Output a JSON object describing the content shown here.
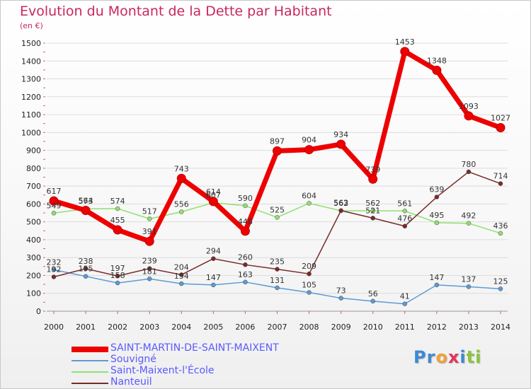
{
  "header": {
    "title": "Evolution du Montant de la Dette par Habitant",
    "unit": "(en €)"
  },
  "logo": {
    "text": "Proxiti",
    "letters": [
      "P",
      "r",
      "o",
      "x",
      "i",
      "t",
      "i"
    ],
    "colors": [
      "#3a8ad6",
      "#3a8ad6",
      "#f2a03b",
      "#e0365f",
      "#3a8ad6",
      "#8ac43f",
      "#8ac43f"
    ]
  },
  "chart_data": {
    "type": "line",
    "title": "Evolution du Montant de la Dette par Habitant",
    "ylabel": "(en €)",
    "ylim": [
      0,
      1500
    ],
    "yticks": [
      0,
      100,
      200,
      300,
      400,
      500,
      600,
      700,
      800,
      900,
      1000,
      1100,
      1200,
      1300,
      1400,
      1500
    ],
    "categories": [
      "2000",
      "2001",
      "2002",
      "2003",
      "2004",
      "2005",
      "2006",
      "2007",
      "2008",
      "2009",
      "2010",
      "2011",
      "2012",
      "2013",
      "2014"
    ],
    "grid": "horizontal",
    "legend_position": "bottom-left",
    "series": [
      {
        "name": "Souvigné",
        "color": "#5b9bd5",
        "values": [
          232,
          195,
          158,
          181,
          154,
          147,
          163,
          131,
          105,
          73,
          56,
          41,
          147,
          137,
          125
        ]
      },
      {
        "name": "Saint-Maixent-l'École",
        "color": "#90e070",
        "values": [
          549,
          573,
          574,
          517,
          556,
          607,
          590,
          525,
          604,
          562,
          562,
          561,
          495,
          492,
          436
        ]
      },
      {
        "name": "Nanteuil",
        "color": "#7a2a2a",
        "values": [
          192,
          238,
          197,
          239,
          204,
          294,
          260,
          235,
          209,
          563,
          521,
          476,
          639,
          780,
          714
        ]
      },
      {
        "name": "SAINT-MARTIN-DE-SAINT-MAIXENT",
        "color": "#ee0000",
        "values": [
          617,
          564,
          455,
          391,
          743,
          614,
          448,
          897,
          904,
          934,
          739,
          1453,
          1348,
          1093,
          1027
        ]
      }
    ],
    "legend_order": [
      "SAINT-MARTIN-DE-SAINT-MAIXENT",
      "Souvigné",
      "Saint-Maixent-l'École",
      "Nanteuil"
    ]
  }
}
